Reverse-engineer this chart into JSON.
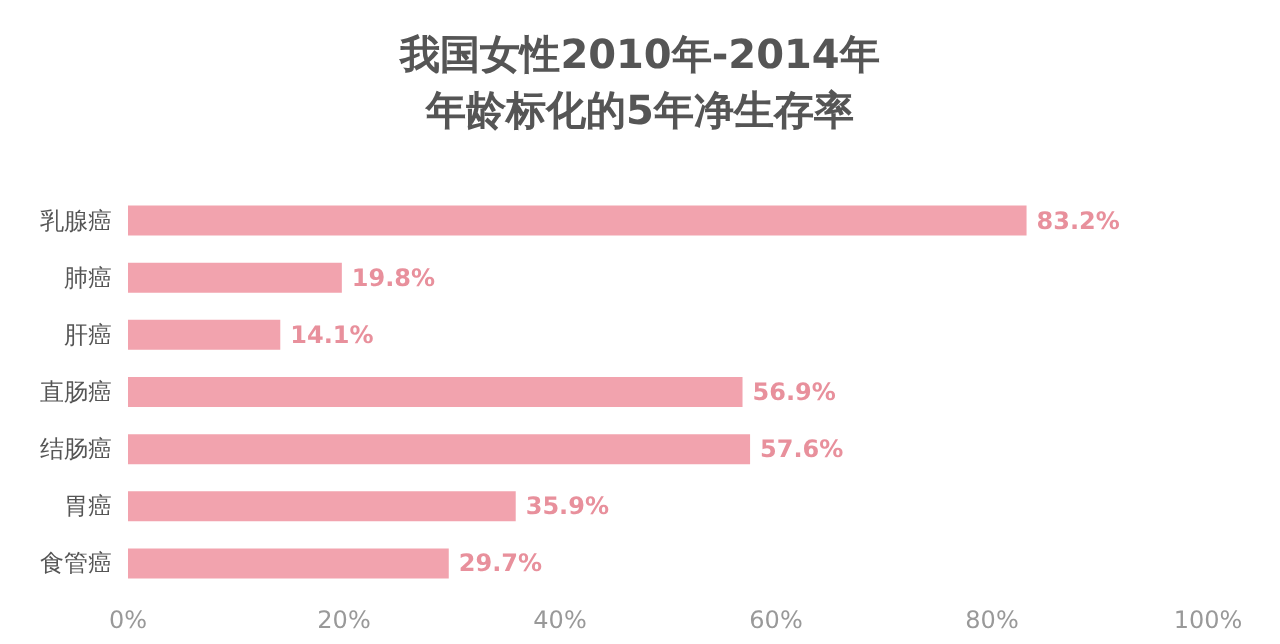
{
  "chart_data": {
    "type": "bar",
    "orientation": "horizontal",
    "title": "我国女性2010年-2014年年龄标化的5年净生存率",
    "categories": [
      "乳腺癌",
      "肺癌",
      "肝癌",
      "直肠癌",
      "结肠癌",
      "胃癌",
      "食管癌"
    ],
    "values": [
      83.2,
      19.8,
      14.1,
      56.9,
      57.6,
      35.9,
      29.7
    ],
    "value_labels": [
      "83.2%",
      "19.8%",
      "14.1%",
      "56.9%",
      "57.6%",
      "35.9%",
      "29.7%"
    ],
    "color": "#f2a3ae",
    "xlim": [
      0,
      100
    ],
    "xticks": [
      {
        "value": 0,
        "label": "0%"
      },
      {
        "value": 20,
        "label": "20%"
      },
      {
        "value": 40,
        "label": "40%"
      },
      {
        "value": 60,
        "label": "60%"
      },
      {
        "value": 80,
        "label": "80%"
      },
      {
        "value": 100,
        "label": "100%"
      }
    ],
    "grid": false
  }
}
